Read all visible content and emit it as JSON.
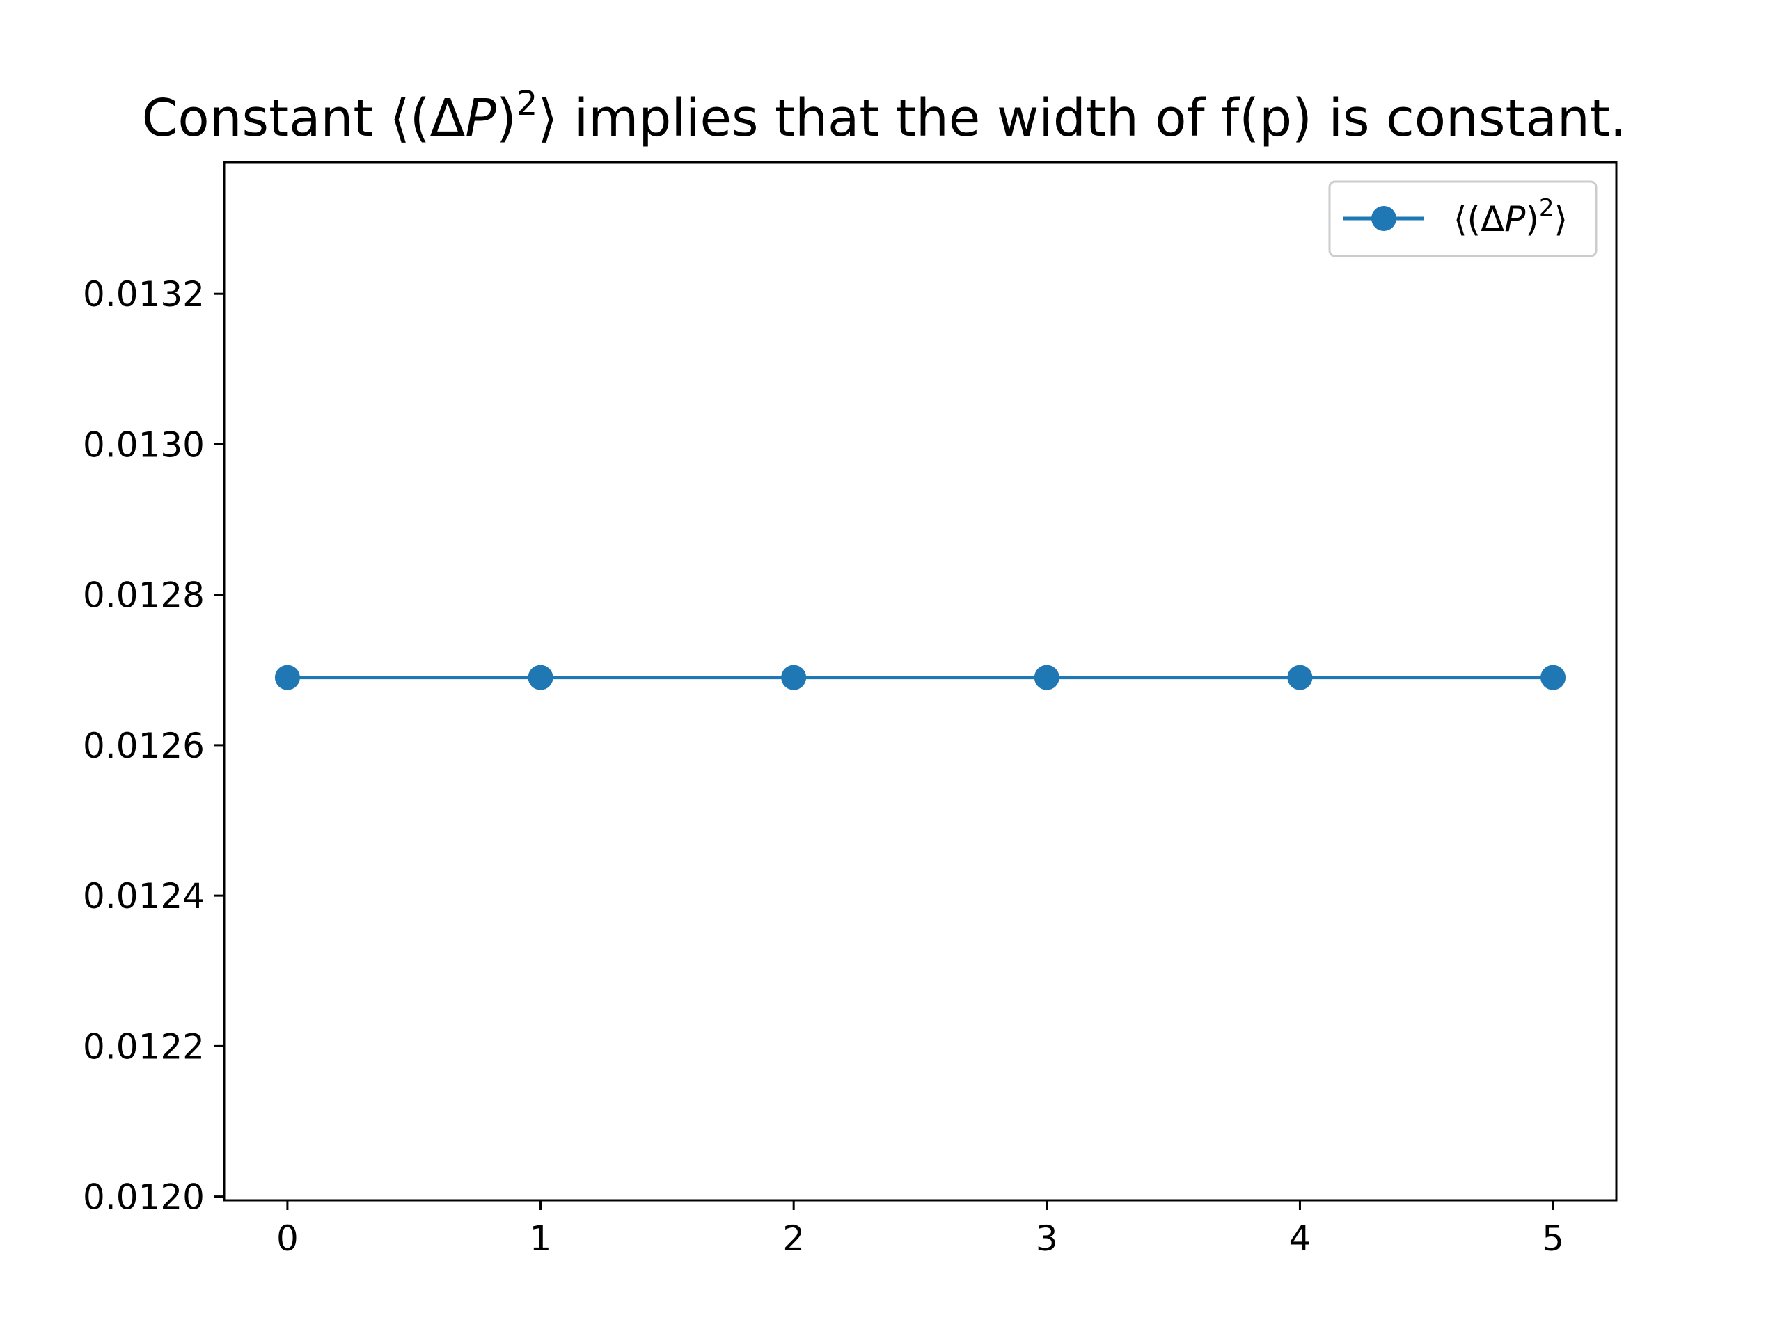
{
  "chart_data": {
    "type": "line",
    "title": {
      "prefix": "Constant ",
      "symbol_open": "⟨(Δ",
      "symbol_var": "P",
      "symbol_close": ")",
      "symbol_sup": "2",
      "symbol_end": "⟩",
      "suffix": " implies that the width of f(p) is constant."
    },
    "xlabel": "",
    "ylabel": "",
    "x": [
      0,
      1,
      2,
      3,
      4,
      5
    ],
    "series": [
      {
        "name": {
          "open": "⟨(Δ",
          "var": "P",
          "close": ")",
          "sup": "2",
          "end": "⟩"
        },
        "values": [
          0.01269,
          0.01269,
          0.01269,
          0.01269,
          0.01269,
          0.01269
        ],
        "color": "#1f77b4",
        "marker": "circle"
      }
    ],
    "xlim": [
      -0.25,
      5.25
    ],
    "ylim": [
      0.011995,
      0.013375
    ],
    "xticks": [
      "0",
      "1",
      "2",
      "3",
      "4",
      "5"
    ],
    "yticks": [
      "0.0120",
      "0.0122",
      "0.0124",
      "0.0126",
      "0.0128",
      "0.0130",
      "0.0132"
    ],
    "grid": false,
    "legend_position": "top-right"
  }
}
